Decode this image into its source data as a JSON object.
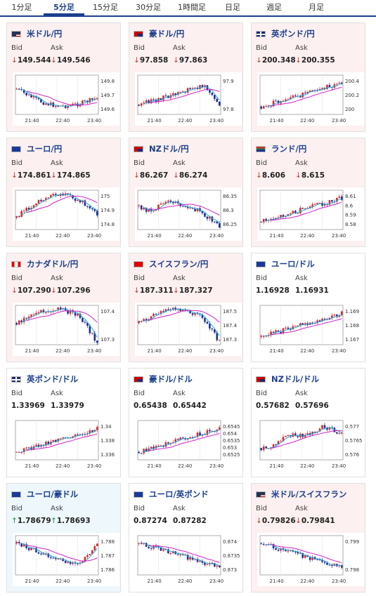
{
  "tabs": [
    "1分足",
    "5分足",
    "15分足",
    "30分足",
    "1時間足",
    "日足",
    "週足",
    "月足"
  ],
  "active_tab": 1,
  "labels": {
    "bid": "Bid",
    "ask": "Ask"
  },
  "times": [
    "21:40",
    "22:40",
    "23:40"
  ],
  "cards": [
    {
      "name": "米ドル/円",
      "flag": "us",
      "dir": "down",
      "bid": "149.544",
      "ask": "149.546",
      "ticks": [
        "149.8",
        "149.7",
        "149.6"
      ],
      "trend": "down-hump"
    },
    {
      "name": "豪ドル/円",
      "flag": "au",
      "dir": "down",
      "bid": "97.858",
      "ask": "97.863",
      "ticks": [
        "97.9",
        "97.8"
      ],
      "trend": "up-drop"
    },
    {
      "name": "英ポンド/円",
      "flag": "uk",
      "dir": "down",
      "bid": "200.348",
      "ask": "200.355",
      "ticks": [
        "200.4",
        "200.2",
        "200"
      ],
      "trend": "up"
    },
    {
      "name": "ユーロ/円",
      "flag": "eu",
      "dir": "down",
      "bid": "174.861",
      "ask": "174.865",
      "ticks": [
        "175",
        "174.9",
        "174.8"
      ],
      "trend": "up-hump"
    },
    {
      "name": "NZドル/円",
      "flag": "nz",
      "dir": "down",
      "bid": "86.267",
      "ask": "86.274",
      "ticks": [
        "86.35",
        "86.3",
        "86.25"
      ],
      "trend": "flat-drop"
    },
    {
      "name": "ランド/円",
      "flag": "za",
      "dir": "down",
      "bid": "8.606",
      "ask": "8.615",
      "ticks": [
        "8.61",
        "8.6",
        "8.59",
        "8.58"
      ],
      "trend": "up"
    },
    {
      "name": "カナダドル/円",
      "flag": "ca",
      "dir": "down",
      "bid": "107.290",
      "ask": "107.296",
      "ticks": [
        "107.4",
        "107.3"
      ],
      "trend": "hump-drop"
    },
    {
      "name": "スイスフラン/円",
      "flag": "ch",
      "dir": "down",
      "bid": "187.311",
      "ask": "187.327",
      "ticks": [
        "187.5",
        "187.4",
        "187.3"
      ],
      "trend": "hump-drop"
    },
    {
      "name": "ユーロ/ドル",
      "flag": "eu",
      "dir": "flat",
      "bid": "1.16928",
      "ask": "1.16931",
      "ticks": [
        "1.169",
        "1.168",
        "1.167"
      ],
      "trend": "up"
    },
    {
      "name": "英ポンド/ドル",
      "flag": "uk",
      "dir": "flat",
      "bid": "1.33969",
      "ask": "1.33979",
      "ticks": [
        "1.34",
        "1.338",
        "1.336"
      ],
      "trend": "up"
    },
    {
      "name": "豪ドル/ドル",
      "flag": "au",
      "dir": "flat",
      "bid": "0.65438",
      "ask": "0.65442",
      "ticks": [
        "0.6545",
        "0.654",
        "0.6535",
        "0.653",
        "0.6525"
      ],
      "trend": "up"
    },
    {
      "name": "NZドル/ドル",
      "flag": "nz",
      "dir": "flat",
      "bid": "0.57682",
      "ask": "0.57696",
      "ticks": [
        "0.577",
        "0.5765",
        "0.576"
      ],
      "trend": "up-flat"
    },
    {
      "name": "ユーロ/豪ドル",
      "flag": "eu",
      "dir": "up",
      "bid": "1.78679",
      "ask": "1.78693",
      "ticks": [
        "1.788",
        "1.787",
        "1.786"
      ],
      "trend": "down-up"
    },
    {
      "name": "ユーロ/英ポンド",
      "flag": "eu",
      "dir": "flat",
      "bid": "0.87274",
      "ask": "0.87282",
      "ticks": [
        "0.874",
        "0.8735",
        "0.873"
      ],
      "trend": "down"
    },
    {
      "name": "米ドル/スイスフラン",
      "flag": "us",
      "dir": "down",
      "bid": "0.79826",
      "ask": "0.79841",
      "ticks": [
        "0.799",
        "0.798"
      ],
      "trend": "down"
    }
  ],
  "colors": {
    "up_candle": "#d62a2a",
    "down_candle": "#1d2f8f",
    "ma1": "#2aa9d8",
    "ma2": "#d020c8",
    "arrow_down": "#c0392b",
    "arrow_up": "#1a8a3a",
    "title": "#1b3f8e"
  }
}
